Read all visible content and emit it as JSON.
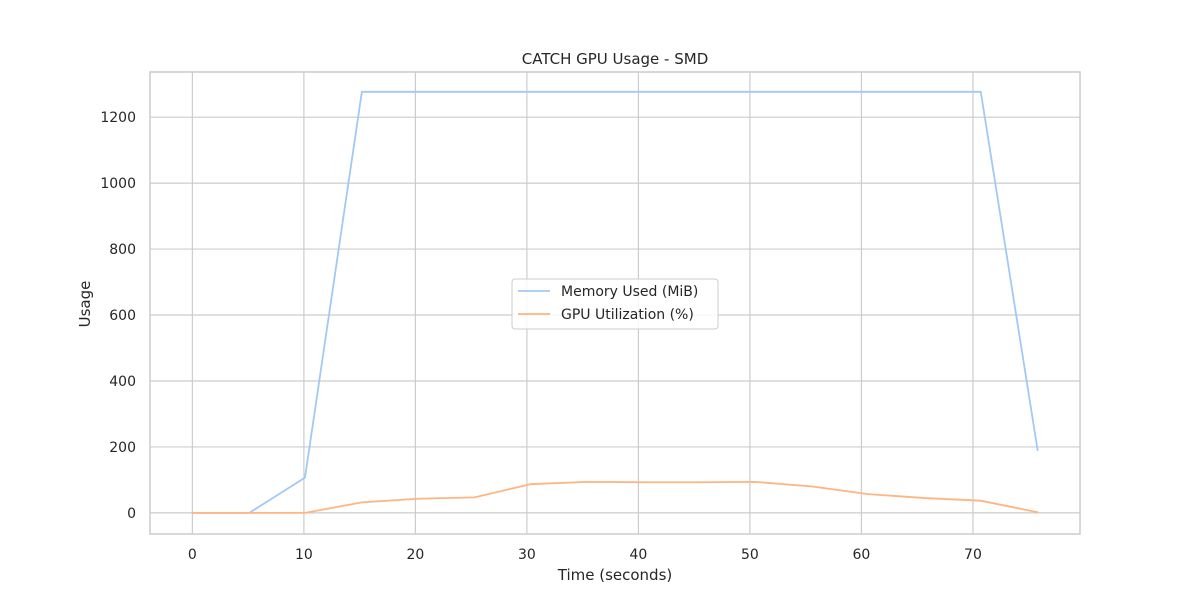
{
  "chart_data": {
    "type": "line",
    "title": "CATCH GPU Usage - SMD",
    "xlabel": "Time (seconds)",
    "ylabel": "Usage",
    "xlim": [
      -3.8,
      79.6
    ],
    "ylim": [
      -64,
      1337
    ],
    "xticks": [
      0,
      10,
      20,
      30,
      40,
      50,
      60,
      70
    ],
    "yticks": [
      0,
      200,
      400,
      600,
      800,
      1000,
      1200
    ],
    "grid": true,
    "legend_position": "center",
    "series": [
      {
        "name": "Memory Used (MiB)",
        "color": "#a1c9f4",
        "points": [
          [
            0,
            0
          ],
          [
            5.1,
            0
          ],
          [
            10.1,
            107
          ],
          [
            15.2,
            1277
          ],
          [
            20.2,
            1277
          ],
          [
            25.3,
            1277
          ],
          [
            30.3,
            1277
          ],
          [
            35.4,
            1277
          ],
          [
            40.4,
            1277
          ],
          [
            45.5,
            1277
          ],
          [
            50.5,
            1277
          ],
          [
            55.6,
            1277
          ],
          [
            60.6,
            1277
          ],
          [
            65.7,
            1277
          ],
          [
            70.7,
            1277
          ],
          [
            75.8,
            190
          ]
        ]
      },
      {
        "name": "GPU Utilization (%)",
        "color": "#ffb482",
        "points": [
          [
            0,
            0
          ],
          [
            5.1,
            0
          ],
          [
            10.1,
            0
          ],
          [
            15.2,
            32
          ],
          [
            20.2,
            43
          ],
          [
            25.3,
            47
          ],
          [
            30.3,
            87
          ],
          [
            35.4,
            94
          ],
          [
            40.4,
            93
          ],
          [
            45.5,
            93
          ],
          [
            50.5,
            94
          ],
          [
            55.6,
            80
          ],
          [
            60.6,
            57
          ],
          [
            65.7,
            45
          ],
          [
            70.7,
            37
          ],
          [
            75.8,
            2
          ]
        ]
      }
    ]
  }
}
